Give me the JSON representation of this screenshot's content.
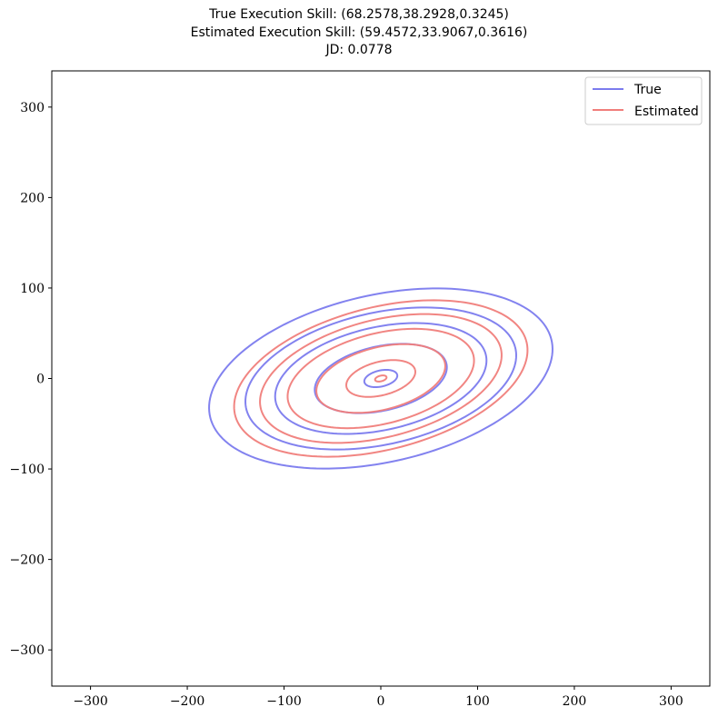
{
  "chart_data": {
    "type": "line",
    "title_lines": [
      "True Execution Skill: (68.2578,38.2928,0.3245)",
      "Estimated Execution Skill: (59.4572,33.9067,0.3616)",
      "JD: 0.0778"
    ],
    "xlabel": "",
    "ylabel": "",
    "xlim": [
      -340,
      340
    ],
    "ylim": [
      -340,
      340
    ],
    "xticks": [
      -300,
      -200,
      -100,
      0,
      100,
      200,
      300
    ],
    "yticks": [
      -300,
      -200,
      -100,
      0,
      100,
      200,
      300
    ],
    "grid": false,
    "legend_position": "top-right",
    "series": [
      {
        "name": "True",
        "color": "#7b7bee",
        "sigma_x": 68.2578,
        "sigma_y": 38.2928,
        "rho": 0.3245,
        "contour_levels_mahalanobis": [
          0.25,
          1.0,
          1.6,
          2.05,
          2.6
        ]
      },
      {
        "name": "Estimated",
        "color": "#f07e7b",
        "sigma_x": 59.4572,
        "sigma_y": 33.9067,
        "rho": 0.3616,
        "contour_levels_mahalanobis": [
          0.1,
          0.6,
          1.12,
          1.62,
          2.1,
          2.55
        ]
      }
    ]
  }
}
